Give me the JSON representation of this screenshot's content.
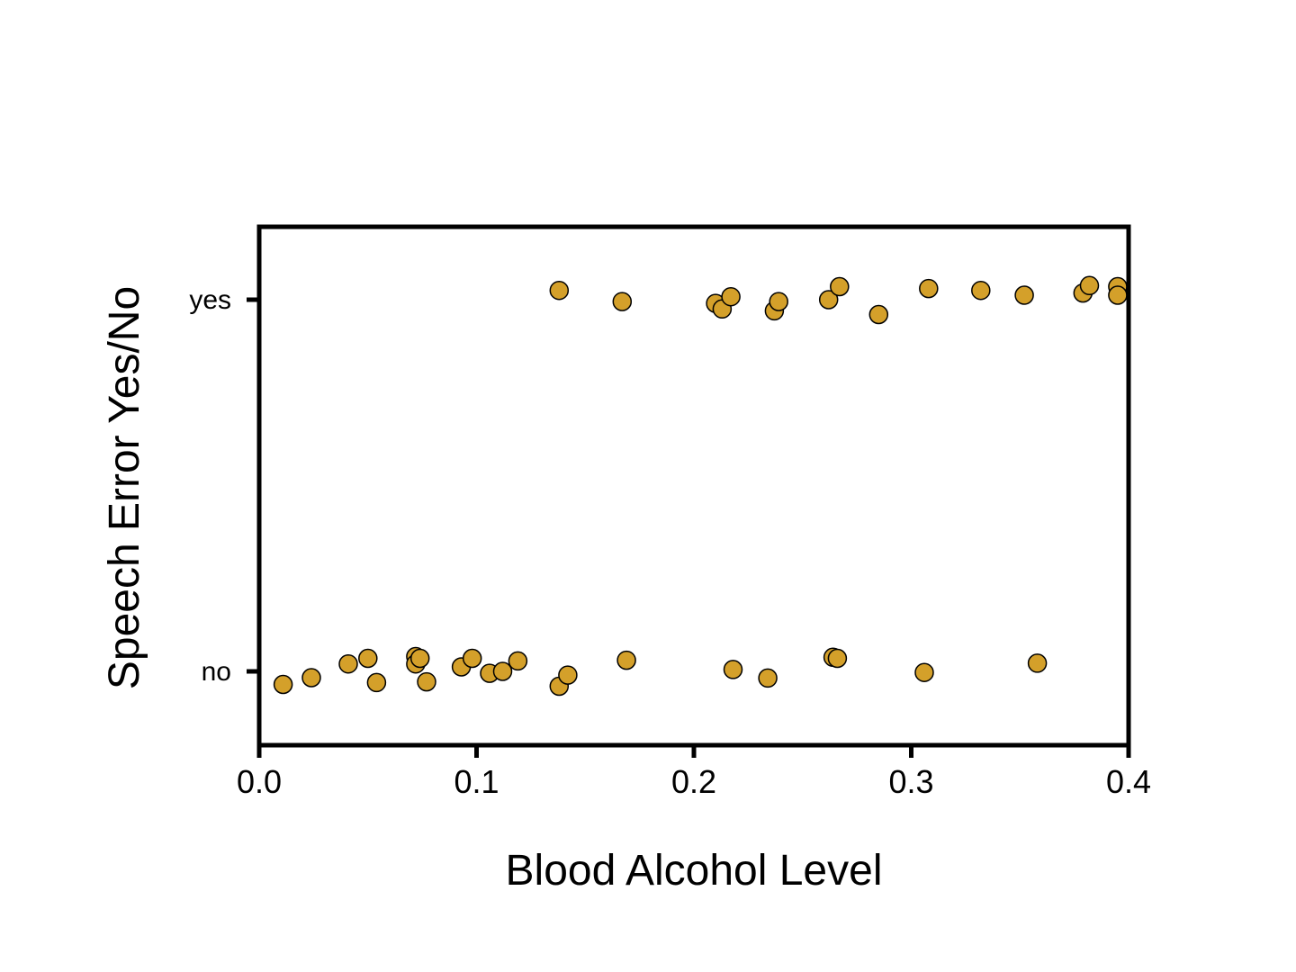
{
  "chart_data": {
    "type": "scatter",
    "title": "",
    "xlabel": "Blood Alcohol Level",
    "ylabel": "Speech Error Yes/No",
    "xlim": [
      0.0,
      0.4
    ],
    "x_ticks": [
      "0.0",
      "0.1",
      "0.2",
      "0.3",
      "0.4"
    ],
    "x_tick_values": [
      0.0,
      0.1,
      0.2,
      0.3,
      0.4
    ],
    "y_categories": [
      "no",
      "yes"
    ],
    "marker_color": "#D4A02A",
    "marker_edge_color": "#000000",
    "grid": false,
    "legend": "none",
    "jitter": "vertical jitter around each category",
    "points": [
      {
        "x": 0.011,
        "y": "no",
        "jitter": -0.035
      },
      {
        "x": 0.024,
        "y": "no",
        "jitter": -0.017
      },
      {
        "x": 0.041,
        "y": "no",
        "jitter": 0.02
      },
      {
        "x": 0.05,
        "y": "no",
        "jitter": 0.035
      },
      {
        "x": 0.054,
        "y": "no",
        "jitter": -0.03
      },
      {
        "x": 0.072,
        "y": "no",
        "jitter": 0.04
      },
      {
        "x": 0.072,
        "y": "no",
        "jitter": 0.02
      },
      {
        "x": 0.074,
        "y": "no",
        "jitter": 0.035
      },
      {
        "x": 0.077,
        "y": "no",
        "jitter": -0.028
      },
      {
        "x": 0.093,
        "y": "no",
        "jitter": 0.012
      },
      {
        "x": 0.098,
        "y": "no",
        "jitter": 0.035
      },
      {
        "x": 0.106,
        "y": "no",
        "jitter": -0.005
      },
      {
        "x": 0.112,
        "y": "no",
        "jitter": 0.0
      },
      {
        "x": 0.119,
        "y": "no",
        "jitter": 0.028
      },
      {
        "x": 0.138,
        "y": "no",
        "jitter": -0.04
      },
      {
        "x": 0.142,
        "y": "no",
        "jitter": -0.01
      },
      {
        "x": 0.169,
        "y": "no",
        "jitter": 0.03
      },
      {
        "x": 0.218,
        "y": "no",
        "jitter": 0.005
      },
      {
        "x": 0.234,
        "y": "no",
        "jitter": -0.018
      },
      {
        "x": 0.264,
        "y": "no",
        "jitter": 0.038
      },
      {
        "x": 0.266,
        "y": "no",
        "jitter": 0.035
      },
      {
        "x": 0.306,
        "y": "no",
        "jitter": -0.003
      },
      {
        "x": 0.358,
        "y": "no",
        "jitter": 0.022
      },
      {
        "x": 0.138,
        "y": "yes",
        "jitter": 0.025
      },
      {
        "x": 0.167,
        "y": "yes",
        "jitter": -0.005
      },
      {
        "x": 0.21,
        "y": "yes",
        "jitter": -0.01
      },
      {
        "x": 0.213,
        "y": "yes",
        "jitter": -0.025
      },
      {
        "x": 0.217,
        "y": "yes",
        "jitter": 0.008
      },
      {
        "x": 0.237,
        "y": "yes",
        "jitter": -0.03
      },
      {
        "x": 0.239,
        "y": "yes",
        "jitter": -0.005
      },
      {
        "x": 0.262,
        "y": "yes",
        "jitter": 0.0
      },
      {
        "x": 0.267,
        "y": "yes",
        "jitter": 0.035
      },
      {
        "x": 0.285,
        "y": "yes",
        "jitter": -0.04
      },
      {
        "x": 0.308,
        "y": "yes",
        "jitter": 0.03
      },
      {
        "x": 0.332,
        "y": "yes",
        "jitter": 0.025
      },
      {
        "x": 0.352,
        "y": "yes",
        "jitter": 0.012
      },
      {
        "x": 0.379,
        "y": "yes",
        "jitter": 0.018
      },
      {
        "x": 0.382,
        "y": "yes",
        "jitter": 0.038
      },
      {
        "x": 0.395,
        "y": "yes",
        "jitter": 0.035
      },
      {
        "x": 0.395,
        "y": "yes",
        "jitter": 0.012
      }
    ]
  }
}
